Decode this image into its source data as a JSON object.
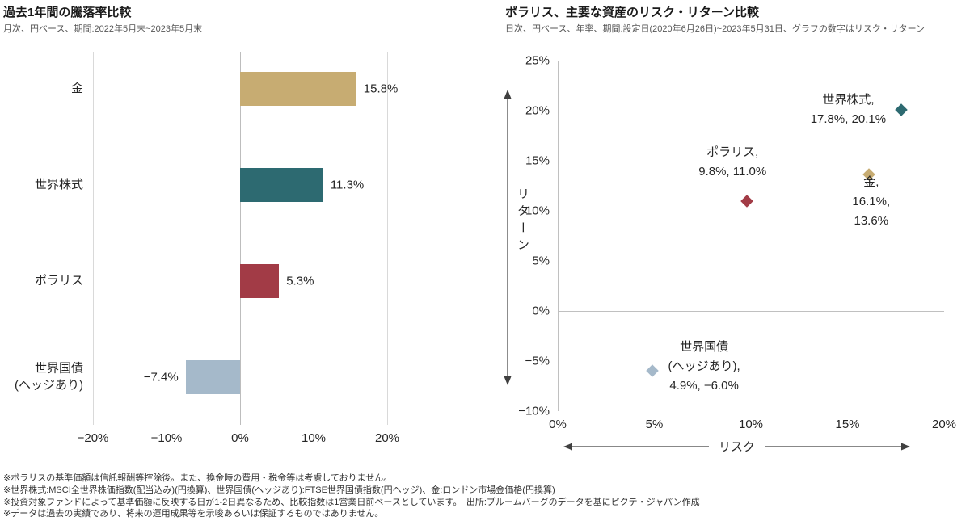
{
  "page_background": "#ffffff",
  "chart_data": [
    {
      "type": "bar",
      "orientation": "horizontal",
      "title": "過去1年間の騰落率比較",
      "subtitle": "月次、円ベース、期間:2022年5月末~2023年5月末",
      "categories": [
        "金",
        "世界株式",
        "ポラリス",
        "世界国債\n(ヘッジあり)"
      ],
      "category_ids": [
        "gold",
        "world-equities",
        "polaris",
        "world-bonds-hedged"
      ],
      "values": [
        15.8,
        11.3,
        5.3,
        -7.4
      ],
      "value_labels": [
        "15.8%",
        "11.3%",
        "5.3%",
        "−7.4%"
      ],
      "colors": [
        "#c7ac72",
        "#2d6a71",
        "#a23b46",
        "#a5b9ca"
      ],
      "xlabel": "",
      "ylabel": "",
      "xlim": [
        -20,
        20
      ],
      "xticks": [
        -20,
        -10,
        0,
        10,
        20
      ],
      "grid": true
    },
    {
      "type": "scatter",
      "title": "ポラリス、主要な資産のリスク・リターン比較",
      "subtitle": "日次、円ベース、年率、期間:設定日(2020年6月26日)~2023年5月31日、グラフの数字はリスク・リターン",
      "xlabel": "リスク",
      "ylabel": "リターン",
      "xlim": [
        0,
        20
      ],
      "ylim": [
        -10,
        25
      ],
      "xticks": [
        0,
        5,
        10,
        15,
        20
      ],
      "yticks": [
        25,
        20,
        15,
        10,
        5,
        0,
        -5,
        -10
      ],
      "grid": false,
      "points": [
        {
          "id": "world-equities",
          "name": "世界株式",
          "x": 17.8,
          "y": 20.1,
          "color": "#2d6a71",
          "label": "世界株式,\n17.8%, 20.1%",
          "label_offset": [
            -66,
            0
          ]
        },
        {
          "id": "polaris",
          "name": "ポラリス",
          "x": 9.8,
          "y": 11.0,
          "color": "#a23b46",
          "label": "ポラリス,\n9.8%, 11.0%",
          "label_offset": [
            -18,
            -48
          ]
        },
        {
          "id": "gold",
          "name": "金",
          "x": 16.1,
          "y": 13.6,
          "color": "#c7ac72",
          "label": "金,\n16.1%, 13.6%",
          "label_offset": [
            3,
            34
          ]
        },
        {
          "id": "world-bonds-hedged",
          "name": "世界国債(ヘッジあり)",
          "x": 4.9,
          "y": -6.0,
          "color": "#a5b9ca",
          "label": "世界国債\n(ヘッジあり),\n4.9%, −6.0%",
          "label_offset": [
            64,
            -5
          ]
        }
      ]
    }
  ],
  "footnotes": [
    "※ポラリスの基準価額は信託報酬等控除後。また、換金時の費用・税金等は考慮しておりません。",
    "※世界株式:MSCI全世界株価指数(配当込み)(円換算)、世界国債(ヘッジあり):FTSE世界国債指数(円ヘッジ)、金:ロンドン市場金価格(円換算)",
    "※投資対象ファンドによって基準価額に反映する日が1-2日異なるため、比較指数は1営業日前ベースとしています。　出所:ブルームバーグのデータを基にピクテ・ジャパン作成",
    "※データは過去の実績であり、将来の運用成果等を示唆あるいは保証するものではありません。"
  ]
}
